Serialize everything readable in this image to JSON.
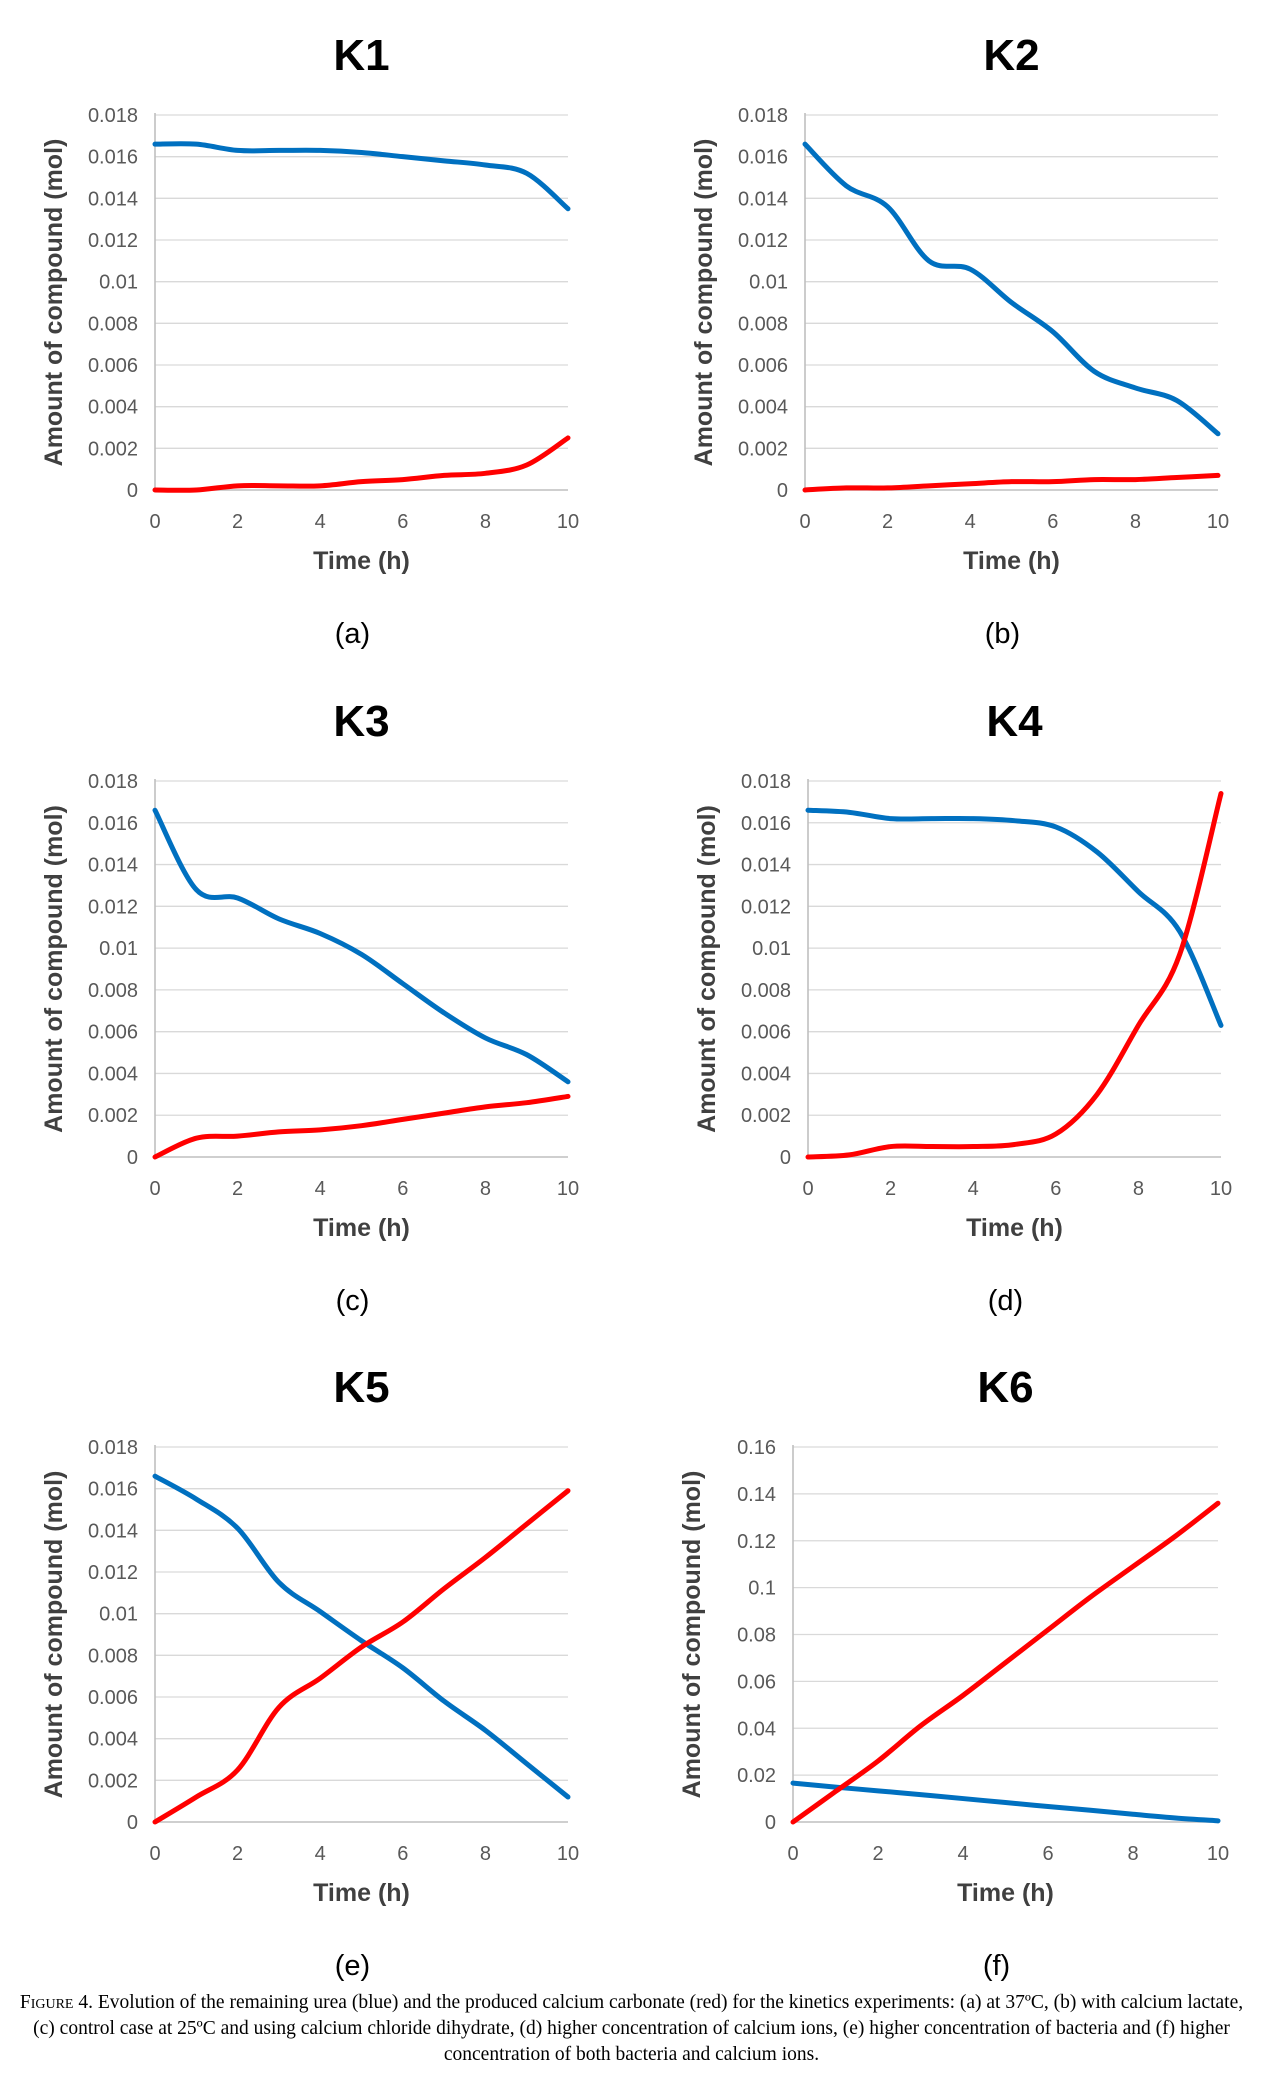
{
  "chart_data": [
    {
      "type": "line",
      "panel": "(a)",
      "title": "K1",
      "xlabel": "Time (h)",
      "ylabel": "Amount of compound (mol)",
      "x_ticks": [
        "0",
        "2",
        "4",
        "6",
        "8",
        "10"
      ],
      "y_ticks": [
        "0",
        "0.002",
        "0.004",
        "0.006",
        "0.008",
        "0.01",
        "0.012",
        "0.014",
        "0.016",
        "0.018"
      ],
      "xlim": [
        0,
        10
      ],
      "ylim": [
        0,
        0.018
      ],
      "grid": true,
      "x": [
        0,
        1,
        2,
        3,
        4,
        5,
        6,
        7,
        8,
        9,
        10
      ],
      "series": [
        {
          "color": "#0070c0",
          "values": [
            0.0166,
            0.0166,
            0.0163,
            0.0163,
            0.0163,
            0.0162,
            0.016,
            0.0158,
            0.0156,
            0.0152,
            0.0135
          ]
        },
        {
          "color": "#ff0000",
          "values": [
            0.0,
            0.0,
            0.0002,
            0.0002,
            0.0002,
            0.0004,
            0.0005,
            0.0007,
            0.0008,
            0.0012,
            0.0025
          ]
        }
      ]
    },
    {
      "type": "line",
      "panel": "(b)",
      "title": "K2",
      "xlabel": "Time (h)",
      "ylabel": "Amount of compound (mol)",
      "x_ticks": [
        "0",
        "2",
        "4",
        "6",
        "8",
        "10"
      ],
      "y_ticks": [
        "0",
        "0.002",
        "0.004",
        "0.006",
        "0.008",
        "0.01",
        "0.012",
        "0.014",
        "0.016",
        "0.018"
      ],
      "xlim": [
        0,
        10
      ],
      "ylim": [
        0,
        0.018
      ],
      "grid": true,
      "x": [
        0,
        1,
        2,
        3,
        4,
        5,
        6,
        7,
        8,
        9,
        10
      ],
      "series": [
        {
          "color": "#0070c0",
          "values": [
            0.0166,
            0.0146,
            0.0136,
            0.011,
            0.0106,
            0.009,
            0.0076,
            0.0057,
            0.0049,
            0.0043,
            0.0027
          ]
        },
        {
          "color": "#ff0000",
          "values": [
            0.0,
            0.0001,
            0.0001,
            0.0002,
            0.0003,
            0.0004,
            0.0004,
            0.0005,
            0.0005,
            0.0006,
            0.0007
          ]
        }
      ]
    },
    {
      "type": "line",
      "panel": "(c)",
      "title": "K3",
      "xlabel": "Time (h)",
      "ylabel": "Amount of compound (mol)",
      "x_ticks": [
        "0",
        "2",
        "4",
        "6",
        "8",
        "10"
      ],
      "y_ticks": [
        "0",
        "0.002",
        "0.004",
        "0.006",
        "0.008",
        "0.01",
        "0.012",
        "0.014",
        "0.016",
        "0.018"
      ],
      "xlim": [
        0,
        10
      ],
      "ylim": [
        0,
        0.018
      ],
      "grid": true,
      "x": [
        0,
        1,
        2,
        3,
        4,
        5,
        6,
        7,
        8,
        9,
        10
      ],
      "series": [
        {
          "color": "#0070c0",
          "values": [
            0.0166,
            0.0128,
            0.0124,
            0.0114,
            0.0107,
            0.0097,
            0.0083,
            0.0069,
            0.0057,
            0.0049,
            0.0036
          ]
        },
        {
          "color": "#ff0000",
          "values": [
            0.0,
            0.0009,
            0.001,
            0.0012,
            0.0013,
            0.0015,
            0.0018,
            0.0021,
            0.0024,
            0.0026,
            0.0029
          ]
        }
      ]
    },
    {
      "type": "line",
      "panel": "(d)",
      "title": "K4",
      "xlabel": "Time (h)",
      "ylabel": "Amount of compound (mol)",
      "x_ticks": [
        "0",
        "2",
        "4",
        "6",
        "8",
        "10"
      ],
      "y_ticks": [
        "0",
        "0.002",
        "0.004",
        "0.006",
        "0.008",
        "0.01",
        "0.012",
        "0.014",
        "0.016",
        "0.018"
      ],
      "xlim": [
        0,
        10
      ],
      "ylim": [
        0,
        0.018
      ],
      "grid": true,
      "x": [
        0,
        1,
        2,
        3,
        4,
        5,
        6,
        7,
        8,
        9,
        10
      ],
      "series": [
        {
          "color": "#0070c0",
          "values": [
            0.0166,
            0.0165,
            0.0162,
            0.0162,
            0.0162,
            0.0161,
            0.0158,
            0.0146,
            0.0127,
            0.0108,
            0.0063
          ]
        },
        {
          "color": "#ff0000",
          "values": [
            0.0,
            0.0001,
            0.0005,
            0.0005,
            0.0005,
            0.0006,
            0.0011,
            0.003,
            0.0063,
            0.0097,
            0.0174
          ]
        }
      ]
    },
    {
      "type": "line",
      "panel": "(e)",
      "title": "K5",
      "xlabel": "Time (h)",
      "ylabel": "Amount of compound (mol)",
      "x_ticks": [
        "0",
        "2",
        "4",
        "6",
        "8",
        "10"
      ],
      "y_ticks": [
        "0",
        "0.002",
        "0.004",
        "0.006",
        "0.008",
        "0.01",
        "0.012",
        "0.014",
        "0.016",
        "0.018"
      ],
      "xlim": [
        0,
        10
      ],
      "ylim": [
        0,
        0.018
      ],
      "grid": true,
      "x": [
        0,
        1,
        2,
        3,
        4,
        5,
        6,
        7,
        8,
        9,
        10
      ],
      "series": [
        {
          "color": "#0070c0",
          "values": [
            0.0166,
            0.0155,
            0.0141,
            0.0115,
            0.0101,
            0.0087,
            0.0074,
            0.0058,
            0.0044,
            0.0028,
            0.0012
          ]
        },
        {
          "color": "#ff0000",
          "values": [
            0.0,
            0.0012,
            0.0025,
            0.0055,
            0.0069,
            0.0084,
            0.0096,
            0.0112,
            0.0127,
            0.0143,
            0.0159
          ]
        }
      ]
    },
    {
      "type": "line",
      "panel": "(f)",
      "title": "K6",
      "xlabel": "Time (h)",
      "ylabel": "Amount of compound (mol)",
      "x_ticks": [
        "0",
        "2",
        "4",
        "6",
        "8",
        "10"
      ],
      "y_ticks": [
        "0",
        "0.02",
        "0.04",
        "0.06",
        "0.08",
        "0.1",
        "0.12",
        "0.14",
        "0.16"
      ],
      "xlim": [
        0,
        10
      ],
      "ylim": [
        0,
        0.16
      ],
      "grid": true,
      "x": [
        0,
        1,
        2,
        3,
        4,
        5,
        6,
        7,
        8,
        9,
        10
      ],
      "series": [
        {
          "color": "#0070c0",
          "values": [
            0.0166,
            0.0149,
            0.0133,
            0.0117,
            0.01,
            0.0083,
            0.0066,
            0.005,
            0.0033,
            0.0017,
            0.0005
          ]
        },
        {
          "color": "#ff0000",
          "values": [
            0.0,
            0.013,
            0.026,
            0.041,
            0.054,
            0.068,
            0.082,
            0.096,
            0.109,
            0.122,
            0.136
          ]
        }
      ]
    }
  ],
  "caption": {
    "label": "Figure",
    "label_rest": " 4. ",
    "text": "Evolution of the remaining urea (blue) and the produced calcium carbonate (red) for the kinetics experiments: (a) at 37ºC, (b) with calcium lactate, (c) control case at 25ºC and using calcium chloride dihydrate, (d) higher concentration of calcium ions, (e) higher concentration of bacteria and (f) higher concentration of both bacteria and calcium ions."
  }
}
